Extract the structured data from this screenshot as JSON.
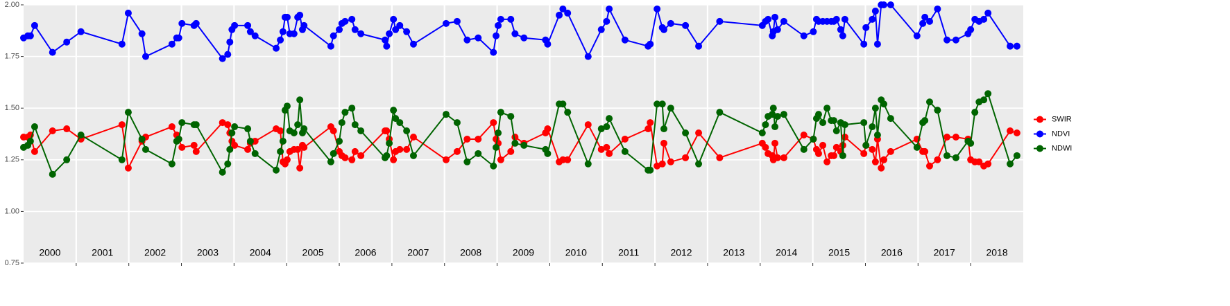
{
  "chart_data": {
    "type": "line",
    "x": [
      2000.0,
      2000.08,
      2000.13,
      2000.21,
      2000.55,
      2000.82,
      2001.09,
      2001.87,
      2001.99,
      2002.25,
      2002.32,
      2002.82,
      2002.91,
      2002.95,
      2003.01,
      2003.24,
      2003.28,
      2003.78,
      2003.88,
      2003.92,
      2003.96,
      2004.01,
      2004.26,
      2004.31,
      2004.4,
      2004.8,
      2004.88,
      2004.93,
      2004.97,
      2005.01,
      2005.06,
      2005.14,
      2005.21,
      2005.25,
      2005.3,
      2005.33,
      2005.84,
      2005.89,
      2006.0,
      2006.05,
      2006.11,
      2006.24,
      2006.3,
      2006.41,
      2006.87,
      2006.9,
      2006.95,
      2007.03,
      2007.07,
      2007.15,
      2007.28,
      2007.41,
      2008.03,
      2008.24,
      2008.43,
      2008.64,
      2008.93,
      2008.98,
      2009.02,
      2009.07,
      2009.26,
      2009.34,
      2009.51,
      2009.92,
      2009.96,
      2010.18,
      2010.25,
      2010.34,
      2010.73,
      2010.98,
      2011.08,
      2011.13,
      2011.43,
      2011.87,
      2011.91,
      2012.04,
      2012.14,
      2012.17,
      2012.3,
      2012.58,
      2012.83,
      2013.23,
      2014.04,
      2014.1,
      2014.15,
      2014.23,
      2014.25,
      2014.28,
      2014.33,
      2014.45,
      2014.83,
      2015.01,
      2015.07,
      2015.11,
      2015.19,
      2015.27,
      2015.35,
      2015.4,
      2015.45,
      2015.53,
      2015.57,
      2015.61,
      2015.97,
      2016.01,
      2016.13,
      2016.19,
      2016.23,
      2016.3,
      2016.35,
      2016.48,
      2016.98,
      2017.09,
      2017.13,
      2017.22,
      2017.37,
      2017.55,
      2017.72,
      2017.95,
      2018.0,
      2018.08,
      2018.16,
      2018.25,
      2018.33,
      2018.75,
      2018.88
    ],
    "series": [
      {
        "name": "SWIR",
        "color": "#ff0000",
        "values": [
          1.36,
          1.36,
          1.37,
          1.29,
          1.39,
          1.4,
          1.35,
          1.42,
          1.21,
          1.34,
          1.36,
          1.41,
          1.37,
          1.35,
          1.31,
          1.32,
          1.29,
          1.43,
          1.42,
          1.38,
          1.34,
          1.32,
          1.3,
          1.33,
          1.34,
          1.4,
          1.39,
          1.24,
          1.23,
          1.25,
          1.29,
          1.3,
          1.3,
          1.21,
          1.32,
          1.31,
          1.41,
          1.39,
          1.29,
          1.27,
          1.26,
          1.25,
          1.29,
          1.27,
          1.39,
          1.39,
          1.35,
          1.25,
          1.29,
          1.3,
          1.3,
          1.36,
          1.25,
          1.29,
          1.35,
          1.35,
          1.43,
          1.35,
          1.33,
          1.25,
          1.29,
          1.36,
          1.33,
          1.38,
          1.4,
          1.24,
          1.25,
          1.25,
          1.42,
          1.3,
          1.31,
          1.28,
          1.35,
          1.4,
          1.43,
          1.22,
          1.23,
          1.33,
          1.24,
          1.26,
          1.38,
          1.26,
          1.33,
          1.31,
          1.28,
          1.27,
          1.25,
          1.33,
          1.26,
          1.26,
          1.37,
          1.35,
          1.3,
          1.28,
          1.32,
          1.24,
          1.27,
          1.27,
          1.31,
          1.29,
          1.32,
          1.36,
          1.28,
          1.32,
          1.3,
          1.24,
          1.35,
          1.21,
          1.25,
          1.29,
          1.35,
          1.29,
          1.29,
          1.22,
          1.25,
          1.36,
          1.36,
          1.35,
          1.25,
          1.24,
          1.24,
          1.22,
          1.23,
          1.39,
          1.38
        ]
      },
      {
        "name": "NDVI",
        "color": "#0000ff",
        "values": [
          1.84,
          1.85,
          1.85,
          1.9,
          1.77,
          1.82,
          1.87,
          1.81,
          1.96,
          1.86,
          1.75,
          1.81,
          1.84,
          1.84,
          1.91,
          1.9,
          1.91,
          1.74,
          1.76,
          1.82,
          1.88,
          1.9,
          1.9,
          1.87,
          1.85,
          1.79,
          1.83,
          1.87,
          1.94,
          1.94,
          1.86,
          1.86,
          1.94,
          1.95,
          1.88,
          1.9,
          1.8,
          1.85,
          1.88,
          1.91,
          1.92,
          1.93,
          1.88,
          1.86,
          1.83,
          1.8,
          1.86,
          1.93,
          1.88,
          1.9,
          1.87,
          1.81,
          1.91,
          1.92,
          1.83,
          1.84,
          1.77,
          1.85,
          1.9,
          1.93,
          1.93,
          1.86,
          1.84,
          1.83,
          1.81,
          1.95,
          1.98,
          1.96,
          1.75,
          1.88,
          1.92,
          1.98,
          1.83,
          1.8,
          1.81,
          1.98,
          1.89,
          1.88,
          1.91,
          1.9,
          1.8,
          1.92,
          1.9,
          1.92,
          1.93,
          1.85,
          1.87,
          1.94,
          1.88,
          1.92,
          1.85,
          1.87,
          1.93,
          1.92,
          1.92,
          1.92,
          1.92,
          1.92,
          1.93,
          1.88,
          1.85,
          1.93,
          1.81,
          1.89,
          1.93,
          1.97,
          1.81,
          2.0,
          2.0,
          2.0,
          1.85,
          1.91,
          1.94,
          1.92,
          1.98,
          1.83,
          1.83,
          1.86,
          1.88,
          1.93,
          1.92,
          1.93,
          1.96,
          1.8,
          1.8
        ]
      },
      {
        "name": "NDWI",
        "color": "#006400",
        "values": [
          1.31,
          1.32,
          1.34,
          1.41,
          1.18,
          1.25,
          1.37,
          1.25,
          1.48,
          1.35,
          1.3,
          1.23,
          1.34,
          1.35,
          1.43,
          1.42,
          1.42,
          1.19,
          1.23,
          1.3,
          1.38,
          1.41,
          1.4,
          1.34,
          1.28,
          1.2,
          1.29,
          1.34,
          1.49,
          1.51,
          1.39,
          1.38,
          1.42,
          1.54,
          1.38,
          1.4,
          1.24,
          1.28,
          1.34,
          1.43,
          1.48,
          1.5,
          1.42,
          1.39,
          1.26,
          1.27,
          1.33,
          1.49,
          1.45,
          1.43,
          1.39,
          1.27,
          1.47,
          1.43,
          1.24,
          1.28,
          1.22,
          1.31,
          1.38,
          1.48,
          1.46,
          1.33,
          1.32,
          1.3,
          1.28,
          1.52,
          1.52,
          1.48,
          1.23,
          1.4,
          1.41,
          1.45,
          1.29,
          1.2,
          1.2,
          1.52,
          1.52,
          1.4,
          1.5,
          1.38,
          1.23,
          1.48,
          1.38,
          1.42,
          1.46,
          1.47,
          1.5,
          1.41,
          1.46,
          1.47,
          1.3,
          1.35,
          1.45,
          1.47,
          1.43,
          1.5,
          1.44,
          1.44,
          1.39,
          1.43,
          1.27,
          1.42,
          1.43,
          1.32,
          1.41,
          1.5,
          1.37,
          1.54,
          1.52,
          1.45,
          1.31,
          1.43,
          1.44,
          1.53,
          1.49,
          1.27,
          1.26,
          1.34,
          1.33,
          1.48,
          1.53,
          1.54,
          1.57,
          1.23,
          1.27
        ]
      }
    ],
    "xlim": [
      2000,
      2019
    ],
    "xticks": [
      2001,
      2002,
      2003,
      2004,
      2005,
      2006,
      2007,
      2008,
      2009,
      2010,
      2011,
      2012,
      2013,
      2014,
      2015,
      2016,
      2017,
      2018
    ],
    "year_labels": [
      "2000",
      "2001",
      "2002",
      "2003",
      "2004",
      "2005",
      "2006",
      "2007",
      "2008",
      "2009",
      "2010",
      "2011",
      "2012",
      "2013",
      "2014",
      "2015",
      "2016",
      "2017",
      "2018"
    ],
    "ylim": [
      0.75,
      2.0
    ],
    "yticks": [
      {
        "value": 0.75,
        "label": "0.75"
      },
      {
        "value": 1.0,
        "label": "1.00"
      },
      {
        "value": 1.25,
        "label": "1.25"
      },
      {
        "value": 1.5,
        "label": "1.50"
      },
      {
        "value": 1.75,
        "label": "1.75"
      },
      {
        "value": 2.0,
        "label": "2.00"
      }
    ],
    "grid": true,
    "legend": "right"
  }
}
